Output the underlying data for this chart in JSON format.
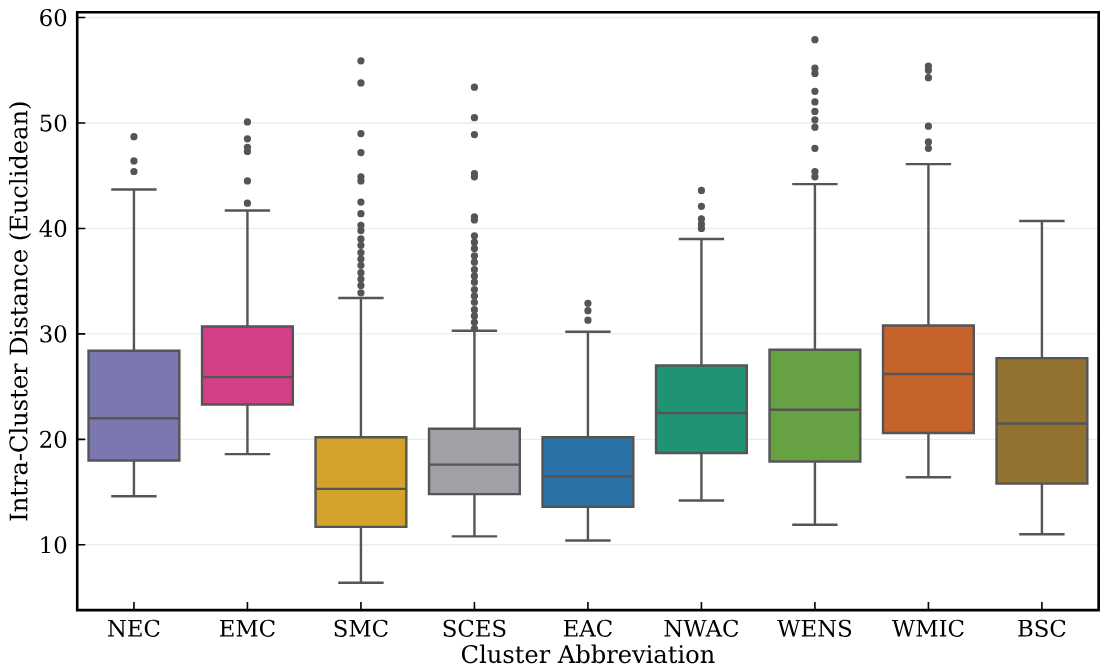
{
  "chart_data": {
    "type": "box",
    "xlabel": "Cluster Abbreviation",
    "ylabel": "Intra-Cluster Distance (Euclidean)",
    "categories": [
      "NEC",
      "EMC",
      "SMC",
      "SCES",
      "EAC",
      "NWAC",
      "WENS",
      "WMIC",
      "BSC"
    ],
    "colors": [
      "#7b78b0",
      "#d43f87",
      "#d4a12a",
      "#a0a0a6",
      "#2a72a8",
      "#1f9474",
      "#66a143",
      "#c6632a",
      "#93712e"
    ],
    "boxes": [
      {
        "low": 14.6,
        "q1": 18.0,
        "median": 22.0,
        "q3": 28.4,
        "high": 43.7,
        "outliers": [
          48.7,
          46.4,
          45.4
        ]
      },
      {
        "low": 18.6,
        "q1": 23.3,
        "median": 25.9,
        "q3": 30.7,
        "high": 41.7,
        "outliers": [
          50.1,
          48.5,
          47.7,
          47.3,
          44.5,
          42.4
        ]
      },
      {
        "low": 6.4,
        "q1": 11.7,
        "median": 15.3,
        "q3": 20.2,
        "high": 33.4,
        "outliers": [
          55.9,
          53.8,
          49.0,
          47.2,
          44.9,
          44.5,
          42.5,
          41.4,
          40.3,
          39.8,
          39.0,
          38.4,
          37.7,
          37.1,
          36.5,
          35.8,
          35.2,
          34.6,
          33.9
        ]
      },
      {
        "low": 10.8,
        "q1": 14.8,
        "median": 17.6,
        "q3": 21.0,
        "high": 30.3,
        "outliers": [
          53.4,
          50.5,
          48.9,
          45.2,
          44.9,
          41.1,
          40.8,
          39.3,
          38.7,
          38.1,
          37.4,
          36.8,
          36.1,
          35.5,
          34.9,
          34.2,
          33.6,
          33.0,
          32.3,
          31.7,
          31.1,
          30.5
        ]
      },
      {
        "low": 10.4,
        "q1": 13.6,
        "median": 16.5,
        "q3": 20.2,
        "high": 30.2,
        "outliers": [
          32.9,
          32.2,
          31.3
        ]
      },
      {
        "low": 14.2,
        "q1": 18.7,
        "median": 22.5,
        "q3": 27.0,
        "high": 39.0,
        "outliers": [
          43.6,
          42.1,
          40.9,
          40.4,
          40.0
        ]
      },
      {
        "low": 11.9,
        "q1": 17.9,
        "median": 22.8,
        "q3": 28.5,
        "high": 44.2,
        "outliers": [
          57.9,
          55.2,
          54.7,
          53.0,
          52.0,
          51.1,
          50.3,
          49.6,
          47.6,
          45.4,
          44.9
        ]
      },
      {
        "low": 16.4,
        "q1": 20.6,
        "median": 26.2,
        "q3": 30.8,
        "high": 46.1,
        "outliers": [
          55.4,
          55.0,
          54.3,
          49.7,
          48.2,
          47.6
        ]
      },
      {
        "low": 11.0,
        "q1": 15.8,
        "median": 21.5,
        "q3": 27.7,
        "high": 40.7
      }
    ],
    "ylim": [
      3.8,
      60.5
    ],
    "yticks": [
      10,
      20,
      30,
      40,
      50,
      60
    ],
    "grid": "y"
  }
}
